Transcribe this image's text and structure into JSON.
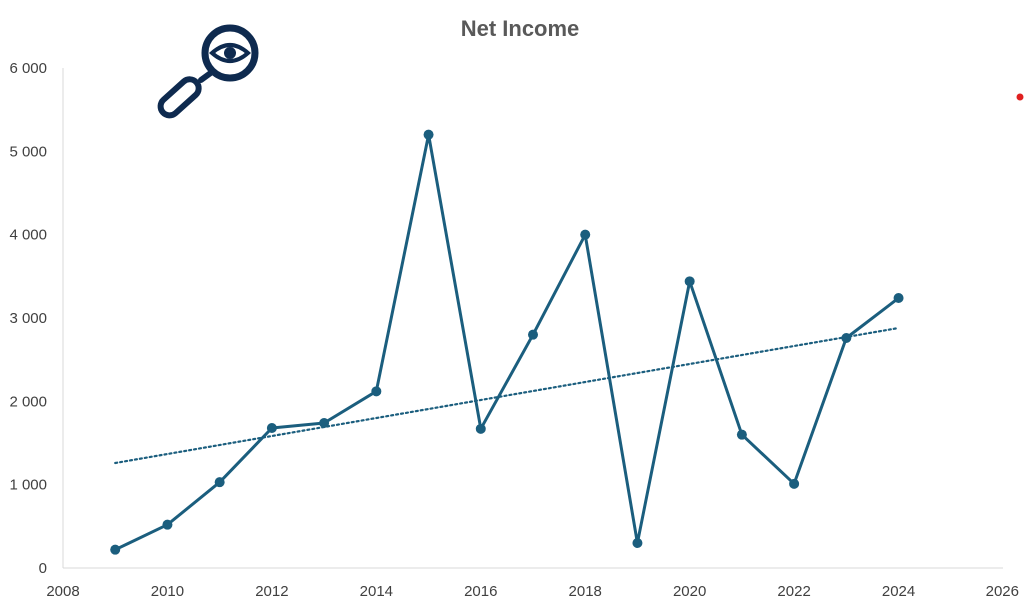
{
  "chart_data": {
    "type": "scatter",
    "title": "Net Income",
    "xlabel": "",
    "ylabel": "",
    "x": [
      2009,
      2010,
      2011,
      2012,
      2013,
      2014,
      2015,
      2016,
      2017,
      2018,
      2019,
      2020,
      2021,
      2022,
      2023,
      2024
    ],
    "series": [
      {
        "values": [
          220,
          520,
          1030,
          1680,
          1740,
          2120,
          5200,
          1670,
          2800,
          4000,
          300,
          3440,
          1600,
          1010,
          2760,
          3240
        ],
        "color": "#1b5e7e",
        "style": "lines-and-markers"
      }
    ],
    "trendline": {
      "type": "linear",
      "x": [
        2009,
        2024
      ],
      "y": [
        1260,
        2880
      ],
      "color": "#1b5e7e",
      "style": "dotted"
    },
    "xlim": [
      2008,
      2026
    ],
    "ylim": [
      0,
      6000
    ],
    "x_ticks": [
      "2008",
      "2010",
      "2012",
      "2014",
      "2016",
      "2018",
      "2020",
      "2022",
      "2024",
      "2026"
    ],
    "y_ticks": [
      "0",
      "1 000",
      "2 000",
      "3 000",
      "4 000",
      "5 000",
      "6 000"
    ],
    "grid": false,
    "legend": "none"
  },
  "decorations": {
    "icon": "magnifier-eye-icon",
    "icon_color": "#0e2a4f",
    "dot_color": "#e02020"
  }
}
